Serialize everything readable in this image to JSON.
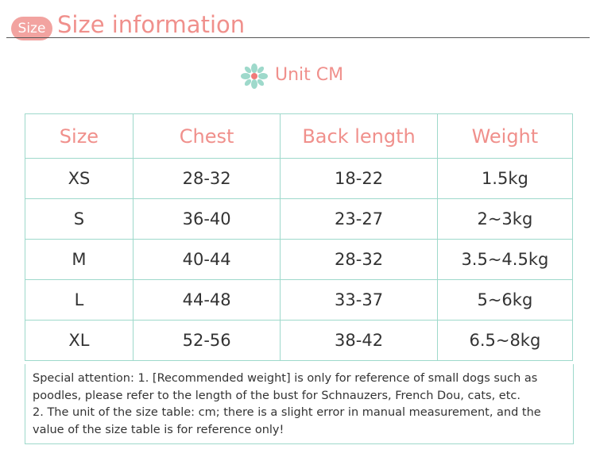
{
  "header": {
    "badge": "Size",
    "title": "Size information"
  },
  "unit": "Unit CM",
  "table": {
    "columns": [
      "Size",
      "Chest",
      "Back length",
      "Weight"
    ],
    "rows": [
      [
        "XS",
        "28-32",
        "18-22",
        "1.5kg"
      ],
      [
        "S",
        "36-40",
        "23-27",
        "2~3kg"
      ],
      [
        "M",
        "40-44",
        "28-32",
        "3.5~4.5kg"
      ],
      [
        "L",
        "44-48",
        "33-37",
        "5~6kg"
      ],
      [
        "XL",
        "52-56",
        "38-42",
        "6.5~8kg"
      ]
    ]
  },
  "note": [
    "Special attention: 1. [Recommended weight] is only for reference of small dogs such as poodles, please refer to the length of the bust for Schnauzers, French Dou, cats, etc.",
    "2. The unit of the size table: cm; there is a slight error in manual measurement, and the value of the size table is for reference only!"
  ]
}
